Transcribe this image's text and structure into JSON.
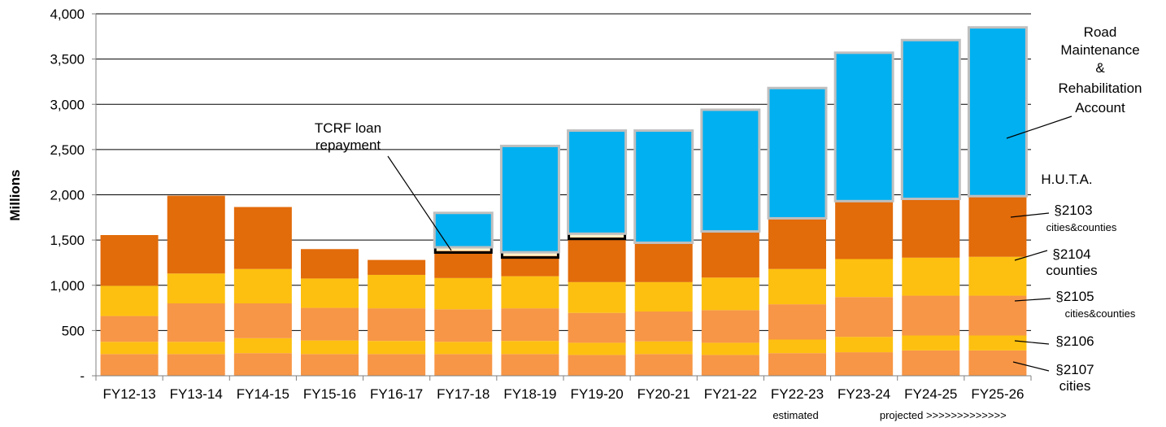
{
  "chart_data": {
    "type": "bar",
    "stacked": true,
    "ylabel": "Millions",
    "ylim": [
      0,
      4000
    ],
    "yticks": [
      0,
      500,
      1000,
      1500,
      2000,
      2500,
      3000,
      3500,
      4000
    ],
    "ytick_labels": [
      "-",
      "500",
      "1,000",
      "1,500",
      "2,000",
      "2,500",
      "3,000",
      "3,500",
      "4,000"
    ],
    "grid": true,
    "categories": [
      "FY12-13",
      "FY13-14",
      "FY14-15",
      "FY15-16",
      "FY16-17",
      "FY17-18",
      "FY18-19",
      "FY19-20",
      "FY20-21",
      "FY21-22",
      "FY22-23",
      "FY23-24",
      "FY24-25",
      "FY25-26"
    ],
    "x_notes": [
      {
        "category": "FY22-23",
        "text": "estimated"
      },
      {
        "category": "FY24-25",
        "text": "projected >>>>>>>>>>>>>"
      }
    ],
    "series": [
      {
        "name": "§2107 cities",
        "color": "#F79646",
        "values": [
          240,
          240,
          250,
          240,
          240,
          240,
          240,
          230,
          240,
          230,
          250,
          260,
          280,
          280
        ]
      },
      {
        "name": "§2106",
        "color": "#FDC010",
        "values": [
          135,
          135,
          165,
          150,
          145,
          135,
          145,
          135,
          140,
          135,
          150,
          170,
          165,
          165
        ]
      },
      {
        "name": "§2105 cities&counties",
        "color": "#F79646",
        "values": [
          285,
          425,
          385,
          360,
          360,
          360,
          360,
          330,
          330,
          360,
          390,
          440,
          440,
          440
        ]
      },
      {
        "name": "§2104 counties",
        "color": "#FDC010",
        "values": [
          335,
          330,
          380,
          325,
          370,
          345,
          355,
          340,
          325,
          360,
          390,
          420,
          420,
          430
        ]
      },
      {
        "name": "§2103 cities&counties",
        "color": "#E26B0A",
        "values": [
          560,
          860,
          685,
          325,
          165,
          300,
          225,
          495,
          435,
          510,
          560,
          640,
          650,
          670
        ]
      },
      {
        "name": "TCRF loan repayment",
        "color": "#FFF2CC",
        "values": [
          0,
          0,
          0,
          0,
          0,
          40,
          40,
          40,
          0,
          0,
          0,
          0,
          0,
          0
        ]
      },
      {
        "name": "Road Maintenance & Rehabilitation Account",
        "color": "#00B0F0",
        "values": [
          0,
          0,
          0,
          0,
          0,
          380,
          1175,
          1140,
          1240,
          1345,
          1440,
          1640,
          1755,
          1865
        ]
      }
    ],
    "annotations": {
      "tcrf": [
        "TCRF loan",
        "repayment"
      ],
      "rmra": [
        "Road",
        "Maintenance",
        "&",
        "Rehabilitation",
        "Account"
      ],
      "huta": "H.U.T.A.",
      "s2103": [
        "§2103",
        "cities&counties"
      ],
      "s2104": [
        "§2104",
        "counties"
      ],
      "s2105": [
        "§2105",
        "cities&counties"
      ],
      "s2106": "§2106",
      "s2107": [
        "§2107",
        "cities"
      ]
    }
  }
}
